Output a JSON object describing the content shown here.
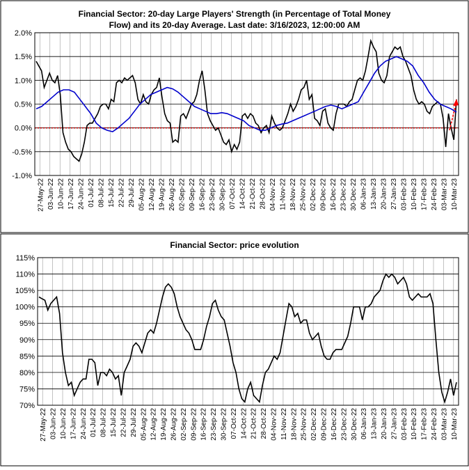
{
  "chart_data": [
    {
      "type": "line",
      "title": "Financial Sector: 20-day Large Players' Strength (in Percentage of Total Money Flow) and its 20-day Average. Last date: 3/16/2023, 12:00:00 AM",
      "title_lines": [
        "Financial Sector: 20-day Large Players' Strength (in Percentage of Total Money",
        "Flow) and its 20-day Average. Last date: 3/16/2023, 12:00:00 AM"
      ],
      "xlabel": "",
      "ylabel": "",
      "ylim": [
        -1.0,
        2.0
      ],
      "y_ticks": [
        -1.0,
        -0.5,
        0.0,
        0.5,
        1.0,
        1.5,
        2.0
      ],
      "y_tick_labels": [
        "-1.0%",
        "-0.5%",
        "0.0%",
        "0.5%",
        "1.0%",
        "1.5%",
        "2.0%"
      ],
      "x_tick_labels": [
        "27-May-22",
        "03-Jun-22",
        "10-Jun-22",
        "17-Jun-22",
        "24-Jun-22",
        "01-Jul-22",
        "08-Jul-22",
        "15-Jul-22",
        "22-Jul-22",
        "29-Jul-22",
        "05-Aug-22",
        "12-Aug-22",
        "19-Aug-22",
        "26-Aug-22",
        "02-Sep-22",
        "09-Sep-22",
        "16-Sep-22",
        "23-Sep-22",
        "30-Sep-22",
        "07-Oct-22",
        "14-Oct-22",
        "21-Oct-22",
        "28-Oct-22",
        "04-Nov-22",
        "11-Nov-22",
        "18-Nov-22",
        "25-Nov-22",
        "02-Dec-22",
        "09-Dec-22",
        "16-Dec-22",
        "23-Dec-22",
        "30-Dec-22",
        "06-Jan-23",
        "13-Jan-23",
        "20-Jan-23",
        "27-Jan-23",
        "03-Feb-23",
        "10-Feb-23",
        "17-Feb-23",
        "24-Feb-23",
        "03-Mar-23",
        "10-Mar-23"
      ],
      "grid": true,
      "zero_line_color": "#cc0000",
      "colors": {
        "strength": "#000000",
        "average": "#0000cc",
        "trend_arrow": "#ff0000"
      },
      "series": [
        {
          "values": [
            1.4,
            1.3,
            1.2,
            0.85,
            1.0,
            1.15,
            1.0,
            0.95,
            1.1,
            0.7,
            -0.1,
            -0.3,
            -0.45,
            -0.5,
            -0.6,
            -0.65,
            -0.7,
            -0.55,
            -0.3,
            0.05,
            0.1,
            0.1,
            0.2,
            0.3,
            0.45,
            0.5,
            0.5,
            0.4,
            0.6,
            0.55,
            0.95,
            1.0,
            0.95,
            1.05,
            1.0,
            1.05,
            1.1,
            0.95,
            0.6,
            0.5,
            0.7,
            0.55,
            0.5,
            0.7,
            0.8,
            0.85,
            1.05,
            0.65,
            0.3,
            0.15,
            0.1,
            -0.3,
            -0.25,
            -0.3,
            0.25,
            0.3,
            0.2,
            0.35,
            0.5,
            0.55,
            0.7,
            1.0,
            1.2,
            0.8,
            0.3,
            0.15,
            0.05,
            -0.05,
            0.0,
            -0.15,
            -0.3,
            -0.35,
            -0.25,
            -0.5,
            -0.35,
            -0.45,
            -0.3,
            0.25,
            0.3,
            0.2,
            0.3,
            0.25,
            0.1,
            0.05,
            -0.1,
            0.0,
            0.05,
            -0.1,
            0.25,
            0.1,
            0.0,
            -0.05,
            0.0,
            0.15,
            0.3,
            0.5,
            0.35,
            0.45,
            0.6,
            0.8,
            0.85,
            1.0,
            0.6,
            0.7,
            0.2,
            0.15,
            0.05,
            0.35,
            0.4,
            0.1,
            0.0,
            -0.05,
            0.3,
            0.5,
            0.5,
            0.5,
            0.45,
            0.55,
            0.6,
            0.8,
            1.0,
            1.05,
            1.0,
            1.2,
            1.5,
            1.83,
            1.7,
            1.6,
            1.15,
            1.0,
            0.95,
            1.1,
            1.5,
            1.6,
            1.7,
            1.65,
            1.7,
            1.5,
            1.4,
            1.25,
            1.1,
            0.8,
            0.6,
            0.5,
            0.55,
            0.5,
            0.35,
            0.3,
            0.45,
            0.5,
            0.55,
            0.5,
            0.2,
            -0.4,
            0.3,
            0.0,
            -0.25,
            0.6
          ],
          "color": "#000000"
        },
        {
          "values": [
            0.4,
            0.45,
            0.55,
            0.65,
            0.75,
            0.8,
            0.8,
            0.75,
            0.6,
            0.45,
            0.3,
            0.1,
            0.0,
            -0.05,
            -0.08,
            0.0,
            0.1,
            0.2,
            0.35,
            0.5,
            0.6,
            0.7,
            0.75,
            0.8,
            0.85,
            0.82,
            0.75,
            0.65,
            0.55,
            0.45,
            0.4,
            0.35,
            0.3,
            0.3,
            0.32,
            0.3,
            0.25,
            0.2,
            0.15,
            0.05,
            0.0,
            -0.05,
            -0.05,
            0.0,
            0.05,
            0.08,
            0.1,
            0.15,
            0.2,
            0.25,
            0.3,
            0.35,
            0.4,
            0.45,
            0.48,
            0.45,
            0.4,
            0.45,
            0.5,
            0.55,
            0.75,
            0.95,
            1.15,
            1.3,
            1.4,
            1.45,
            1.5,
            1.45,
            1.4,
            1.3,
            1.1,
            0.95,
            0.75,
            0.6,
            0.5,
            0.45,
            0.4,
            0.33
          ],
          "color": "#0000cc"
        }
      ]
    },
    {
      "type": "line",
      "title": "Financial Sector: price evolution",
      "xlabel": "",
      "ylabel": "",
      "ylim": [
        70,
        115
      ],
      "y_ticks": [
        70,
        75,
        80,
        85,
        90,
        95,
        100,
        105,
        110,
        115
      ],
      "y_tick_labels": [
        "70%",
        "75%",
        "80%",
        "85%",
        "90%",
        "95%",
        "100%",
        "105%",
        "110%",
        "115%"
      ],
      "x_tick_labels": [
        "27-May-22",
        "03-Jun-22",
        "10-Jun-22",
        "17-Jun-22",
        "24-Jun-22",
        "01-Jul-22",
        "08-Jul-22",
        "15-Jul-22",
        "22-Jul-22",
        "29-Jul-22",
        "05-Aug-22",
        "12-Aug-22",
        "19-Aug-22",
        "26-Aug-22",
        "02-Sep-22",
        "09-Sep-22",
        "16-Sep-22",
        "23-Sep-22",
        "30-Sep-22",
        "07-Oct-22",
        "14-Oct-22",
        "21-Oct-22",
        "28-Oct-22",
        "04-Nov-22",
        "11-Nov-22",
        "18-Nov-22",
        "25-Nov-22",
        "02-Dec-22",
        "09-Dec-22",
        "16-Dec-22",
        "23-Dec-22",
        "30-Dec-22",
        "06-Jan-23",
        "13-Jan-23",
        "20-Jan-23",
        "27-Jan-23",
        "03-Feb-23",
        "10-Feb-23",
        "17-Feb-23",
        "24-Feb-23",
        "03-Mar-23",
        "10-Mar-23"
      ],
      "grid": true,
      "series": [
        {
          "values": [
            103,
            102.5,
            102,
            99,
            101,
            102,
            103,
            98,
            86,
            80,
            76,
            77,
            73,
            75,
            77,
            78,
            78,
            84,
            84,
            83,
            76,
            80,
            80,
            79,
            81,
            80,
            78,
            79,
            73,
            80,
            82,
            84,
            88,
            89,
            88,
            86,
            89,
            92,
            93,
            92,
            95,
            99,
            103,
            106,
            107,
            106,
            104,
            100,
            97,
            95,
            93,
            92,
            90,
            87,
            87,
            87,
            90,
            94,
            97,
            101,
            102,
            99,
            97,
            96,
            92,
            88,
            83,
            80,
            75,
            72,
            71,
            75,
            77,
            73,
            72,
            71,
            76,
            80,
            81,
            83,
            85,
            84,
            86,
            91,
            96,
            101,
            100,
            97,
            98,
            95,
            96,
            96,
            92,
            90,
            91,
            92,
            88,
            85,
            84,
            84,
            86,
            87,
            87,
            87,
            89,
            91,
            95,
            100,
            100,
            100,
            96,
            100,
            100,
            101,
            103,
            104,
            105,
            108,
            110,
            109,
            110,
            109,
            107,
            108,
            109,
            107,
            103,
            102,
            103,
            104,
            103,
            103,
            103,
            104,
            101,
            90,
            80,
            74,
            71,
            74,
            78,
            73,
            77
          ],
          "color": "#000000"
        }
      ]
    }
  ]
}
